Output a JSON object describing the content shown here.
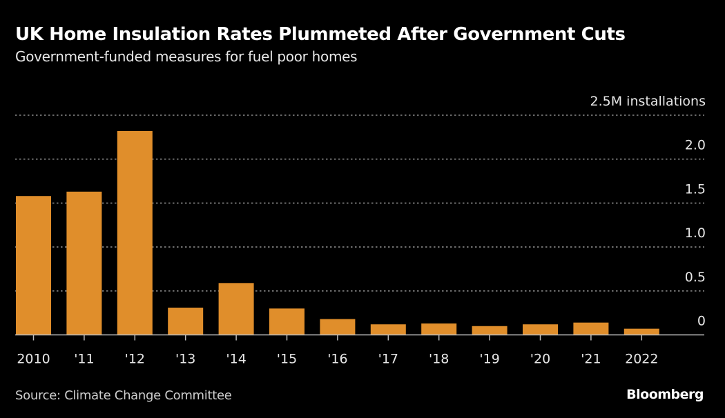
{
  "header": {
    "title": "UK Home Insulation Rates Plummeted After Government Cuts",
    "subtitle": "Government-funded measures for fuel poor homes"
  },
  "footer": {
    "source": "Source: Climate Change Committee",
    "brand": "Bloomberg"
  },
  "colors": {
    "background": "#000000",
    "bar": "#E08E2B",
    "gridline": "#8a8a8a",
    "axis": "#bdbdbd",
    "text": "#e6e6e6"
  },
  "chart_data": {
    "type": "bar",
    "title": "UK Home Insulation Rates Plummeted After Government Cuts",
    "subtitle": "Government-funded measures for fuel poor homes",
    "xlabel": "",
    "ylabel": "installations (millions)",
    "categories": [
      "2010",
      "'11",
      "'12",
      "'13",
      "'14",
      "'15",
      "'16",
      "'17",
      "'18",
      "'19",
      "'20",
      "'21",
      "2022"
    ],
    "values": [
      1.58,
      1.63,
      2.32,
      0.31,
      0.59,
      0.3,
      0.18,
      0.12,
      0.13,
      0.1,
      0.12,
      0.14,
      0.07
    ],
    "ylim": [
      0,
      2.5
    ],
    "yticks": [
      0,
      0.5,
      1.0,
      1.5,
      2.0,
      2.5
    ],
    "ytick_labels": [
      "0",
      "0.5",
      "1.0",
      "1.5",
      "2.0",
      "2.5M installations"
    ],
    "y_axis_side": "right",
    "grid": true,
    "grid_style": "dotted",
    "legend": "none",
    "source": "Source: Climate Change Committee"
  }
}
